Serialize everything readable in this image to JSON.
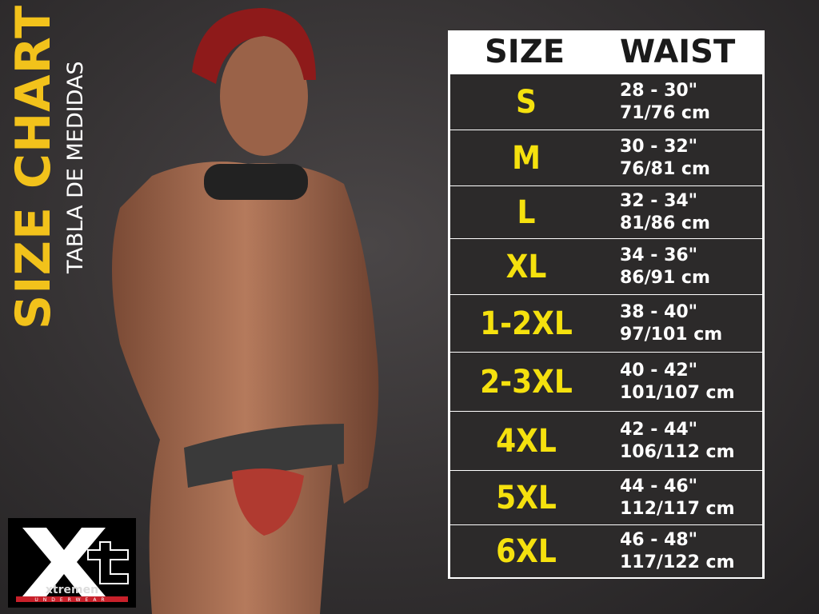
{
  "title": {
    "main": "SIZE CHART",
    "sub": "TABLA DE MEDIDAS"
  },
  "table": {
    "headers": [
      "SIZE",
      "WAIST"
    ],
    "rows": [
      {
        "size": "S",
        "inches": "28 - 30\"",
        "cm": "71/76 cm"
      },
      {
        "size": "M",
        "inches": "30 - 32\"",
        "cm": "76/81 cm"
      },
      {
        "size": "L",
        "inches": "32 - 34\"",
        "cm": "81/86 cm"
      },
      {
        "size": "XL",
        "inches": "34 - 36\"",
        "cm": "86/91 cm"
      },
      {
        "size": "1-2XL",
        "inches": "38 - 40\"",
        "cm": "97/101 cm"
      },
      {
        "size": "2-3XL",
        "inches": "40 - 42\"",
        "cm": "101/107 cm"
      },
      {
        "size": "4XL",
        "inches": "42 - 44\"",
        "cm": "106/112 cm"
      },
      {
        "size": "5XL",
        "inches": "44 - 46\"",
        "cm": "112/117 cm"
      },
      {
        "size": "6XL",
        "inches": "46 - 48\"",
        "cm": "117/122 cm"
      }
    ]
  },
  "logo": {
    "mark": "Xt",
    "brand": "xtremen",
    "tagline": "UNDERWEAR"
  },
  "colors": {
    "accent": "#f2c21b",
    "size_text": "#f5e10e",
    "row_bg": "#2c2a2a"
  }
}
